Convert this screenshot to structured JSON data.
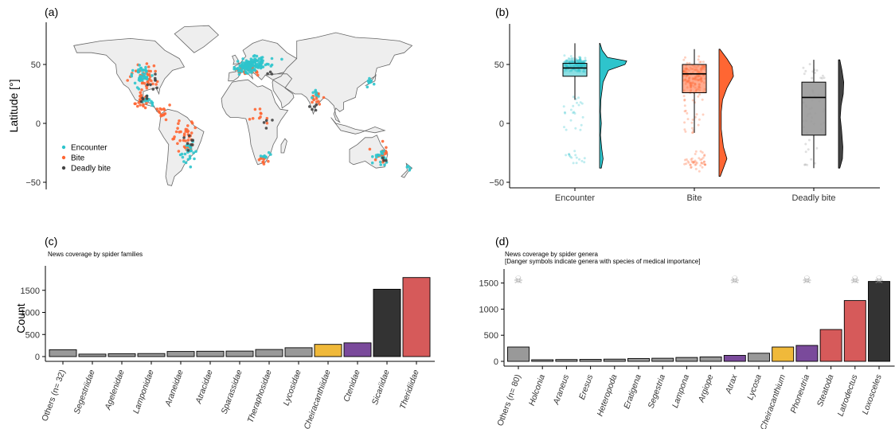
{
  "panels": {
    "a": {
      "label": "(a)"
    },
    "b": {
      "label": "(b)"
    },
    "c": {
      "label": "(c)",
      "subtitle": "News coverage by spider families"
    },
    "d": {
      "label": "(d)",
      "subtitle_line1": "News coverage by spider genera",
      "subtitle_line2": "[Danger symbols indicate genera with species of medical importance]"
    }
  },
  "colors": {
    "encounter": "#2ec4cc",
    "bite": "#ff6633",
    "deadly": "#444444",
    "grey_bar": "#999999",
    "gold": "#f0b93a",
    "purple": "#7a4a9b",
    "red": "#d65a5a",
    "dark": "#333333",
    "land": "#eeeeee",
    "border": "#666666"
  },
  "chart_data": [
    {
      "id": "a",
      "type": "scatter",
      "title": "",
      "ylabel": "Latitude [°]",
      "yticks": [
        -50,
        0,
        50
      ],
      "legend": {
        "placement": "bottom-left",
        "entries": [
          "Encounter",
          "Bite",
          "Deadly bite"
        ]
      },
      "series": [
        {
          "name": "Encounter",
          "regions": [
            [
              40,
              -100,
              10,
              12,
              40
            ],
            [
              48,
              10,
              6,
              14,
              90
            ],
            [
              52,
              20,
              5,
              20,
              60
            ],
            [
              -25,
              -50,
              10,
              10,
              25
            ],
            [
              -30,
              145,
              8,
              10,
              20
            ],
            [
              35,
              135,
              4,
              6,
              10
            ],
            [
              25,
              80,
              6,
              6,
              8
            ],
            [
              -28,
              28,
              4,
              6,
              8
            ],
            [
              -38,
              175,
              3,
              3,
              4
            ],
            [
              18,
              -90,
              6,
              8,
              12
            ]
          ]
        },
        {
          "name": "Bite",
          "regions": [
            [
              38,
              -95,
              10,
              14,
              40
            ],
            [
              20,
              -100,
              6,
              8,
              25
            ],
            [
              -10,
              -55,
              15,
              12,
              40
            ],
            [
              45,
              10,
              5,
              10,
              30
            ],
            [
              -30,
              25,
              5,
              6,
              10
            ],
            [
              20,
              80,
              8,
              8,
              14
            ],
            [
              -25,
              145,
              8,
              10,
              16
            ],
            [
              10,
              -75,
              8,
              8,
              15
            ],
            [
              5,
              20,
              10,
              15,
              10
            ]
          ]
        },
        {
          "name": "Deadly bite",
          "regions": [
            [
              35,
              -85,
              8,
              10,
              8
            ],
            [
              20,
              -95,
              5,
              6,
              5
            ],
            [
              -20,
              -50,
              10,
              8,
              8
            ],
            [
              15,
              78,
              8,
              8,
              5
            ],
            [
              0,
              30,
              8,
              10,
              4
            ],
            [
              -30,
              150,
              4,
              6,
              3
            ],
            [
              45,
              35,
              4,
              6,
              3
            ]
          ]
        }
      ]
    },
    {
      "id": "b",
      "type": "box-violin",
      "ylabel": "",
      "yticks": [
        -50,
        0,
        50
      ],
      "categories": [
        "Encounter",
        "Bite",
        "Deadly bite"
      ],
      "series": [
        {
          "name": "Encounter",
          "q1": 40,
          "median": 47,
          "q3": 51,
          "whisker_low": 20,
          "whisker_high": 68,
          "range": [
            -38,
            68
          ]
        },
        {
          "name": "Bite",
          "q1": 26,
          "median": 42,
          "q3": 50,
          "whisker_low": -8,
          "whisker_high": 63,
          "range": [
            -45,
            63
          ]
        },
        {
          "name": "Deadly bite",
          "q1": -10,
          "median": 22,
          "q3": 35,
          "whisker_low": -38,
          "whisker_high": 54,
          "range": [
            -38,
            54
          ]
        }
      ]
    },
    {
      "id": "c",
      "type": "bar",
      "ylabel": "Count",
      "ylim": [
        0,
        1850
      ],
      "yticks": [
        0,
        500,
        1000,
        1500
      ],
      "categories": [
        "Others (n= 32)",
        "Segestriidae",
        "Agelenidae",
        "Lamponidae",
        "Araneidae",
        "Atracidae",
        "Sparassidae",
        "Theraphosidae",
        "Lycosidae",
        "Cheiracanthiidae",
        "Ctenidae",
        "Sicariidae",
        "Theridiidae"
      ],
      "values": [
        155,
        55,
        65,
        68,
        115,
        120,
        125,
        160,
        200,
        275,
        310,
        1525,
        1790
      ],
      "bar_colors": [
        "#999999",
        "#999999",
        "#999999",
        "#999999",
        "#999999",
        "#999999",
        "#999999",
        "#999999",
        "#999999",
        "#f0b93a",
        "#7a4a9b",
        "#333333",
        "#d65a5a"
      ]
    },
    {
      "id": "d",
      "type": "bar",
      "ylabel": "",
      "ylim": [
        0,
        1800
      ],
      "yticks": [
        0,
        500,
        1000,
        1500
      ],
      "categories": [
        "Others (n= 80)",
        "Holconia",
        "Araneus",
        "Eresus",
        "Heteropoda",
        "Eratigena",
        "Segestria",
        "Lampona",
        "Argiope",
        "Atrax",
        "Lycosa",
        "Cheiracanthium",
        "Phoneutria",
        "Steatoda",
        "Latrodectus",
        "Loxosceles"
      ],
      "values": [
        275,
        30,
        35,
        38,
        42,
        55,
        60,
        75,
        85,
        115,
        155,
        275,
        305,
        610,
        1165,
        1530
      ],
      "bar_colors": [
        "#999999",
        "#999999",
        "#999999",
        "#999999",
        "#999999",
        "#999999",
        "#999999",
        "#999999",
        "#999999",
        "#7a4a9b",
        "#999999",
        "#f0b93a",
        "#7a4a9b",
        "#d65a5a",
        "#d65a5a",
        "#333333"
      ],
      "danger_symbol": "☠",
      "danger_flags": [
        true,
        false,
        false,
        false,
        false,
        false,
        false,
        false,
        false,
        true,
        false,
        false,
        true,
        false,
        true,
        true
      ]
    }
  ]
}
